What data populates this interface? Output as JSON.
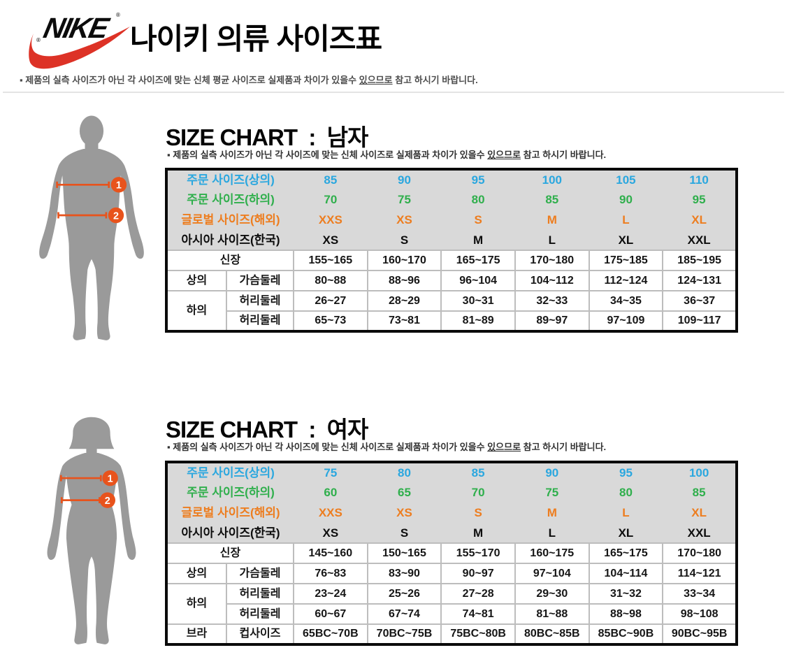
{
  "colors": {
    "blue": "#2AA7DF",
    "green": "#2FAF4C",
    "orange": "#ED7D1F",
    "measure_orange": "#E8531C",
    "swoosh_red": "#DD3226",
    "silhouette_gray": "#9A9A9A",
    "table_header_bg": "#D9D9D9",
    "table_border": "#BDBDBD"
  },
  "header": {
    "brand": "NIKE",
    "registered": "®",
    "title": "나이키 의류 사이즈표",
    "note": {
      "bullet": "▪",
      "pre": "제품의 실측 사이즈가 아닌 각 사이즈에 맞는 신체 평균 사이즈로 실제품과 차이가 있을수 ",
      "underlined": "있으므로",
      "post": " 참고 하시기 바랍니다."
    }
  },
  "sections": [
    {
      "id": "men",
      "title": "SIZE CHART  :  남자",
      "note": {
        "bullet": "▪",
        "pre": "제품의 실측 사이즈가 아닌 각 사이즈에 맞는 신체 사이즈로 실제품과 차이가 있을수 ",
        "underlined": "있으므로",
        "post": " 참고 하시기 바랍니다."
      },
      "figure": {
        "type": "male",
        "markers": [
          {
            "num": "1"
          },
          {
            "num": "2"
          }
        ]
      },
      "table": {
        "header_rows": [
          {
            "label": "주문 사이즈(상의)",
            "color": "blue",
            "values": [
              "85",
              "90",
              "95",
              "100",
              "105",
              "110"
            ]
          },
          {
            "label": "주문 사이즈(하의)",
            "color": "green",
            "values": [
              "70",
              "75",
              "80",
              "85",
              "90",
              "95"
            ]
          },
          {
            "label": "글로벌 사이즈(해외)",
            "color": "orange",
            "values": [
              "XXS",
              "XS",
              "S",
              "M",
              "L",
              "XL"
            ]
          },
          {
            "label": "아시아 사이즈(한국)",
            "color": "black",
            "values": [
              "XS",
              "S",
              "M",
              "L",
              "XL",
              "XXL"
            ]
          }
        ],
        "body_rows": [
          {
            "labels": [
              {
                "text": "신장",
                "colspan": 2
              }
            ],
            "values": [
              "155~165",
              "160~170",
              "165~175",
              "170~180",
              "175~185",
              "185~195"
            ]
          },
          {
            "labels": [
              {
                "text": "상의"
              },
              {
                "text": "가슴둘레"
              }
            ],
            "values": [
              "80~88",
              "88~96",
              "96~104",
              "104~112",
              "112~124",
              "124~131"
            ]
          },
          {
            "labels": [
              {
                "text": "하의",
                "rowspan": 2
              },
              {
                "text": "허리둘레"
              }
            ],
            "values": [
              "26~27",
              "28~29",
              "30~31",
              "32~33",
              "34~35",
              "36~37"
            ]
          },
          {
            "labels": [
              {
                "text": "허리둘레"
              }
            ],
            "values": [
              "65~73",
              "73~81",
              "81~89",
              "89~97",
              "97~109",
              "109~117"
            ]
          }
        ]
      }
    },
    {
      "id": "women",
      "title": "SIZE CHART  :  여자",
      "note": {
        "bullet": "▪",
        "pre": "제품의 실측 사이즈가 아닌 각 사이즈에 맞는 신체 사이즈로 실제품과 차이가 있을수 ",
        "underlined": "있으므로",
        "post": " 참고 하시기 바랍니다."
      },
      "figure": {
        "type": "female",
        "markers": [
          {
            "num": "1"
          },
          {
            "num": "2"
          }
        ]
      },
      "table": {
        "header_rows": [
          {
            "label": "주문 사이즈(상의)",
            "color": "blue",
            "values": [
              "75",
              "80",
              "85",
              "90",
              "95",
              "100"
            ]
          },
          {
            "label": "주문 사이즈(하의)",
            "color": "green",
            "values": [
              "60",
              "65",
              "70",
              "75",
              "80",
              "85"
            ]
          },
          {
            "label": "글로벌 사이즈(해외)",
            "color": "orange",
            "values": [
              "XXS",
              "XS",
              "S",
              "M",
              "L",
              "XL"
            ]
          },
          {
            "label": "아시아 사이즈(한국)",
            "color": "black",
            "values": [
              "XS",
              "S",
              "M",
              "L",
              "XL",
              "XXL"
            ]
          }
        ],
        "body_rows": [
          {
            "labels": [
              {
                "text": "신장",
                "colspan": 2
              }
            ],
            "values": [
              "145~160",
              "150~165",
              "155~170",
              "160~175",
              "165~175",
              "170~180"
            ]
          },
          {
            "labels": [
              {
                "text": "상의"
              },
              {
                "text": "가슴둘레"
              }
            ],
            "values": [
              "76~83",
              "83~90",
              "90~97",
              "97~104",
              "104~114",
              "114~121"
            ]
          },
          {
            "labels": [
              {
                "text": "하의",
                "rowspan": 2
              },
              {
                "text": "허리둘레"
              }
            ],
            "values": [
              "23~24",
              "25~26",
              "27~28",
              "29~30",
              "31~32",
              "33~34"
            ]
          },
          {
            "labels": [
              {
                "text": "허리둘레"
              }
            ],
            "values": [
              "60~67",
              "67~74",
              "74~81",
              "81~88",
              "88~98",
              "98~108"
            ]
          },
          {
            "labels": [
              {
                "text": "브라"
              },
              {
                "text": "컵사이즈"
              }
            ],
            "values": [
              "65BC~70B",
              "70BC~75B",
              "75BC~80B",
              "80BC~85B",
              "85BC~90B",
              "90BC~95B"
            ]
          }
        ]
      }
    }
  ]
}
